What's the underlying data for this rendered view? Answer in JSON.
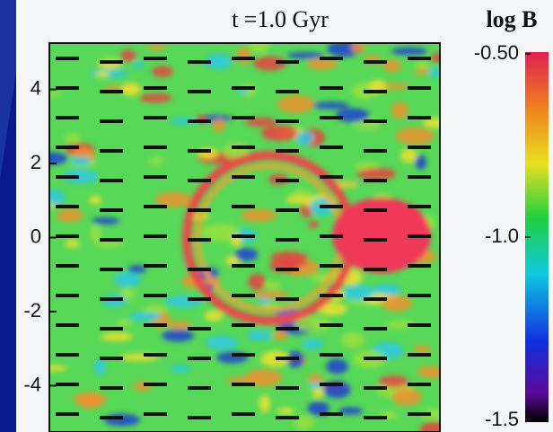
{
  "chart_data": {
    "type": "heatmap",
    "title": "t =1.0 Gyr",
    "colorbar_label": "log B",
    "ylim": [
      -5.25,
      5.25
    ],
    "yticks": [
      4,
      2,
      0,
      -2,
      -4
    ],
    "clim": [
      -1.5,
      -0.5
    ],
    "cticks": [
      {
        "value": -0.5,
        "label": "-0.50"
      },
      {
        "value": -1,
        "label": "-1.0"
      },
      -1.5
    ]
  }
}
